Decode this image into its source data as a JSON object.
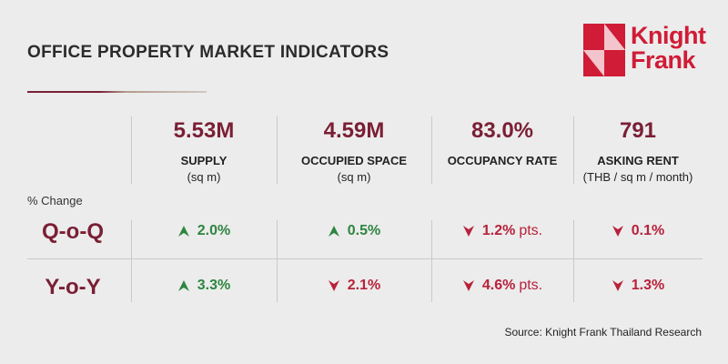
{
  "title": "OFFICE PROPERTY MARKET INDICATORS",
  "brand": {
    "line1": "Knight",
    "line2": "Frank",
    "color": "#d01c36"
  },
  "colors": {
    "accent": "#7a1f35",
    "up": "#2e8540",
    "down": "#b8213a",
    "background": "#ececec"
  },
  "indicators": [
    {
      "value": "5.53M",
      "label": "SUPPLY",
      "unit": "(sq m)"
    },
    {
      "value": "4.59M",
      "label": "OCCUPIED SPACE",
      "unit": "(sq m)"
    },
    {
      "value": "83.0%",
      "label": "OCCUPANCY RATE",
      "unit": ""
    },
    {
      "value": "791",
      "label": "ASKING RENT",
      "unit": "(THB / sq m / month)"
    }
  ],
  "change_label": "% Change",
  "rows": [
    {
      "label": "Q-o-Q",
      "cells": [
        {
          "direction": "up",
          "icon": "arrow-up-icon",
          "value": "2.0%",
          "suffix": ""
        },
        {
          "direction": "up",
          "icon": "arrow-up-icon",
          "value": "0.5%",
          "suffix": ""
        },
        {
          "direction": "down",
          "icon": "arrow-down-icon",
          "value": "1.2%",
          "suffix": "pts."
        },
        {
          "direction": "down",
          "icon": "arrow-down-icon",
          "value": "0.1%",
          "suffix": ""
        }
      ]
    },
    {
      "label": "Y-o-Y",
      "cells": [
        {
          "direction": "up",
          "icon": "arrow-up-icon",
          "value": "3.3%",
          "suffix": ""
        },
        {
          "direction": "down",
          "icon": "arrow-down-icon",
          "value": "2.1%",
          "suffix": ""
        },
        {
          "direction": "down",
          "icon": "arrow-down-icon",
          "value": "4.6%",
          "suffix": "pts."
        },
        {
          "direction": "down",
          "icon": "arrow-down-icon",
          "value": "1.3%",
          "suffix": ""
        }
      ]
    }
  ],
  "source": "Source: Knight Frank Thailand Research"
}
